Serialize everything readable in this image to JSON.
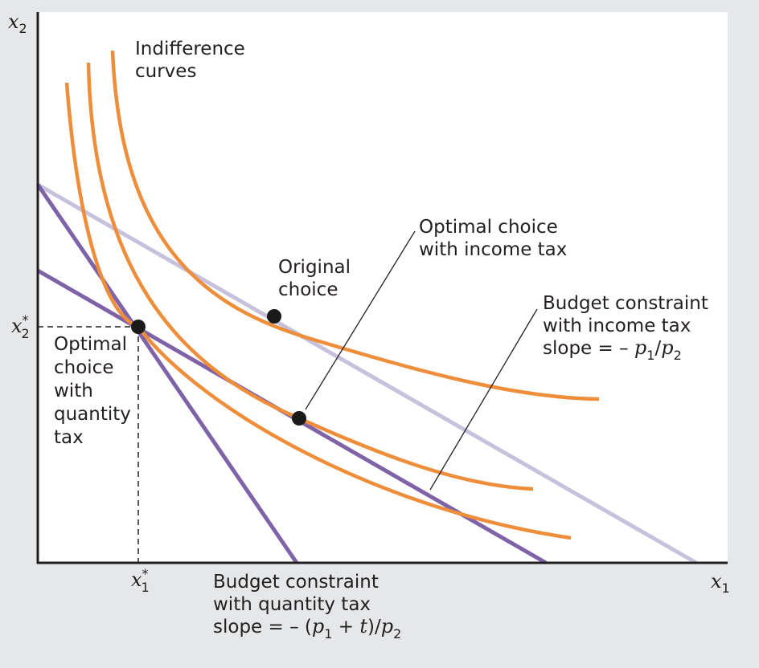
{
  "axes": {
    "y_label": "x",
    "y_label_sub": "2",
    "x_label": "x",
    "x_label_sub": "1"
  },
  "ticks": {
    "x2_star": "x",
    "x2_star_sub": "2",
    "x2_star_sup": "*",
    "x1_star": "x",
    "x1_star_sub": "1",
    "x1_star_sup": "*"
  },
  "annotations": {
    "indifference": [
      "Indifference",
      "curves"
    ],
    "original_choice": [
      "Original",
      "choice"
    ],
    "optimal_income": [
      "Optimal choice",
      "with income tax"
    ],
    "budget_income_l1": "Budget constraint",
    "budget_income_l2": "with income tax",
    "budget_income_slope_prefix": "slope = – ",
    "budget_income_p1": "p",
    "budget_income_p1_sub": "1",
    "budget_income_div": "/",
    "budget_income_p2": "p",
    "budget_income_p2_sub": "2",
    "optimal_quantity": [
      "Optimal",
      "choice",
      "with",
      "quantity",
      "tax"
    ],
    "budget_quantity_l1": "Budget constraint",
    "budget_quantity_l2": "with quantity tax",
    "budget_quantity_slope_prefix": "slope = – (",
    "budget_quantity_p1": "p",
    "budget_quantity_p1_sub": "1",
    "budget_quantity_plus": " + ",
    "budget_quantity_t": "t",
    "budget_quantity_close": ")/",
    "budget_quantity_p2": "p",
    "budget_quantity_p2_sub": "2"
  },
  "colors": {
    "background": "#e6e7e8",
    "plot_area": "#ffffff",
    "axis": "#231f20",
    "indifference_curve": "#ee8d3a",
    "budget_quantity_tax": "#7e63a8",
    "budget_income_tax": "#c6c1dc",
    "point": "#1a1a1a"
  }
}
